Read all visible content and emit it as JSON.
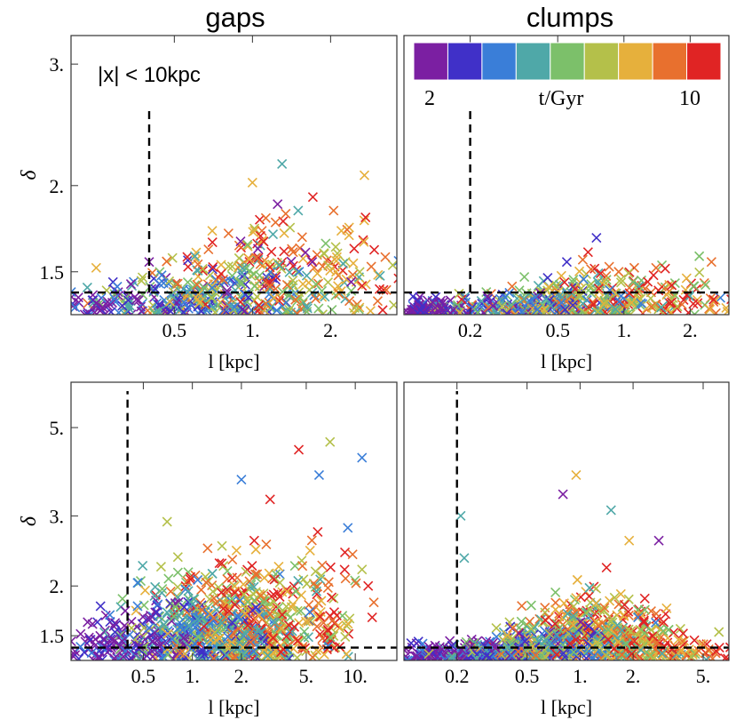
{
  "chart_data": [
    {
      "type": "scatter",
      "column_title": "gaps",
      "annotation": "|x| < 10kpc",
      "xlabel": "l [kpc]",
      "ylabel": "δ",
      "xscale": "log",
      "yscale": "log",
      "xlim": [
        0.2,
        3.6
      ],
      "ylim": [
        1.3,
        3.3
      ],
      "xticks": [
        {
          "v": 0.5,
          "label": "0.5"
        },
        {
          "v": 1,
          "label": "1."
        },
        {
          "v": 2,
          "label": "2."
        }
      ],
      "yticks": [
        {
          "v": 1.5,
          "label": "1.5"
        },
        {
          "v": 2,
          "label": "2."
        },
        {
          "v": 3,
          "label": "3."
        }
      ],
      "threshold_x": 0.4,
      "threshold_y": 1.4,
      "points": [
        [
          0.4,
          1.55
        ],
        [
          1.3,
          2.15
        ],
        [
          1.0,
          2.02
        ],
        [
          1.25,
          1.88
        ],
        [
          1.5,
          1.84
        ],
        [
          2.2,
          1.72
        ],
        [
          1.7,
          1.55
        ],
        [
          3.1,
          1.48
        ],
        [
          0.7,
          1.72
        ],
        [
          0.9,
          1.66
        ],
        [
          1.2,
          1.7
        ],
        [
          2.7,
          2.07
        ],
        [
          1.05,
          1.62
        ],
        [
          0.6,
          1.58
        ],
        [
          2.1,
          1.5
        ],
        [
          1.6,
          1.6
        ],
        [
          1.9,
          1.38
        ],
        [
          0.25,
          1.52
        ],
        [
          2.4,
          1.45
        ]
      ],
      "series_points": [
        {
          "t": 3,
          "x": [
            0.22,
            0.24,
            0.26,
            0.28,
            0.3,
            0.33,
            0.36,
            0.4,
            0.42,
            0.46
          ],
          "y": [
            1.36,
            1.34,
            1.38,
            1.35,
            1.33,
            1.37,
            1.35,
            1.34,
            1.39,
            1.36
          ]
        }
      ]
    },
    {
      "type": "scatter",
      "column_title": "clumps",
      "xlabel": "l [kpc]",
      "xscale": "log",
      "yscale": "log",
      "xlim": [
        0.1,
        3.0
      ],
      "ylim": [
        1.3,
        3.3
      ],
      "xticks": [
        {
          "v": 0.2,
          "label": "0.2"
        },
        {
          "v": 0.5,
          "label": "0.5"
        },
        {
          "v": 1,
          "label": "1."
        },
        {
          "v": 2,
          "label": "2."
        }
      ],
      "threshold_x": 0.2,
      "threshold_y": 1.4,
      "points": [
        [
          0.75,
          1.68
        ],
        [
          2.2,
          1.58
        ],
        [
          1.4,
          1.52
        ],
        [
          0.55,
          1.55
        ],
        [
          1.1,
          1.45
        ],
        [
          2.5,
          1.55
        ],
        [
          0.45,
          1.47
        ]
      ]
    },
    {
      "type": "scatter",
      "xlabel": "l [kpc]",
      "ylabel": "δ",
      "xscale": "log",
      "yscale": "log",
      "xlim": [
        0.18,
        18
      ],
      "ylim": [
        1.3,
        6.5
      ],
      "xticks": [
        {
          "v": 0.5,
          "label": "0.5"
        },
        {
          "v": 1,
          "label": "1."
        },
        {
          "v": 2,
          "label": "2."
        },
        {
          "v": 5,
          "label": "5."
        },
        {
          "v": 10,
          "label": "10."
        }
      ],
      "yticks": [
        {
          "v": 1.5,
          "label": "1.5"
        },
        {
          "v": 2,
          "label": "2."
        },
        {
          "v": 3,
          "label": "3."
        },
        {
          "v": 5,
          "label": "5."
        }
      ],
      "threshold_x": 0.4,
      "threshold_y": 1.4,
      "points": [
        [
          11,
          4.2
        ],
        [
          7,
          4.6
        ],
        [
          4.5,
          4.4
        ],
        [
          6,
          3.8
        ],
        [
          0.7,
          2.9
        ],
        [
          3,
          3.3
        ],
        [
          9,
          2.8
        ],
        [
          11,
          2.2
        ],
        [
          12,
          2.0
        ],
        [
          2.0,
          3.7
        ]
      ]
    },
    {
      "type": "scatter",
      "xlabel": "l [kpc]",
      "xscale": "log",
      "yscale": "log",
      "xlim": [
        0.1,
        7.0
      ],
      "ylim": [
        1.3,
        6.5
      ],
      "xticks": [
        {
          "v": 0.2,
          "label": "0.2"
        },
        {
          "v": 0.5,
          "label": "0.5"
        },
        {
          "v": 1,
          "label": "1."
        },
        {
          "v": 2,
          "label": "2."
        },
        {
          "v": 5,
          "label": "5."
        }
      ],
      "threshold_x": 0.2,
      "threshold_y": 1.4,
      "points": [
        [
          0.21,
          3.0
        ],
        [
          0.95,
          3.8
        ],
        [
          0.8,
          3.4
        ],
        [
          1.5,
          3.1
        ],
        [
          1.9,
          2.6
        ],
        [
          2.8,
          2.6
        ],
        [
          0.22,
          2.35
        ]
      ]
    }
  ],
  "colorbar": {
    "label": "t/Gyr",
    "min_label": "2",
    "max_label": "10",
    "range": [
      2,
      10
    ],
    "colors": [
      "#7b1fa2",
      "#4030c8",
      "#3a7ed8",
      "#4fa8a8",
      "#7cc06a",
      "#b4c04a",
      "#e6b03c",
      "#e8702e",
      "#e02424"
    ]
  }
}
